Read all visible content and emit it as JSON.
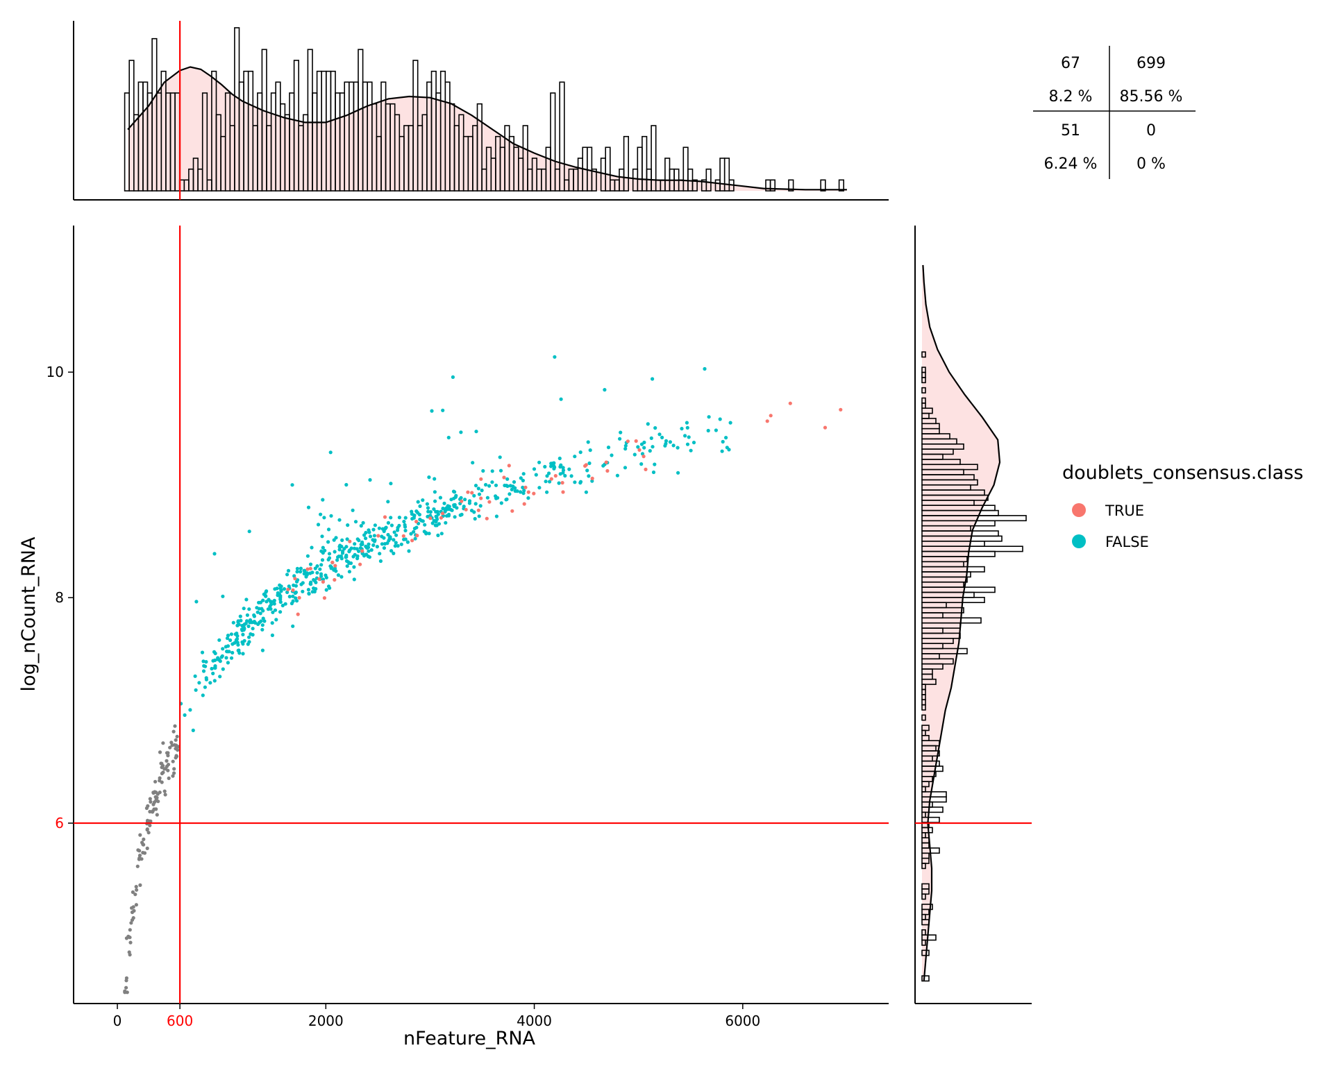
{
  "chart_data": {
    "type": "scatter",
    "x_label": "nFeature_RNA",
    "y_label": "log_nCount_RNA",
    "xlim": [
      -420,
      7400
    ],
    "ylim": [
      4.4,
      11.3
    ],
    "x_ticks": [
      0,
      600,
      2000,
      4000,
      6000
    ],
    "y_ticks": [
      6,
      8,
      10
    ],
    "threshold_x": 600,
    "threshold_y": 6,
    "threshold_color": "#ff0000",
    "grid": false,
    "legend": {
      "title": "doublets_consensus.class",
      "position": "right",
      "items": [
        {
          "label": "TRUE",
          "color": "#F8766D"
        },
        {
          "label": "FALSE",
          "color": "#00BFC4"
        }
      ]
    },
    "below_threshold_color": "#808080",
    "marginal_fill_color": "#fde2e2",
    "quadrant_table": {
      "top_left_count": "67",
      "top_left_pct": "8.2 %",
      "top_right_count": "699",
      "top_right_pct": "85.56 %",
      "bottom_left_count": "51",
      "bottom_left_pct": "6.24 %",
      "bottom_right_count": "0",
      "bottom_right_pct": "0 %"
    },
    "counts": {
      "grey_points": 118,
      "true_points": 60,
      "false_points": 639
    },
    "x_density": [
      [
        100,
        0.52
      ],
      [
        300,
        0.72
      ],
      [
        450,
        0.92
      ],
      [
        600,
        1.02
      ],
      [
        700,
        1.05
      ],
      [
        800,
        1.03
      ],
      [
        900,
        0.97
      ],
      [
        1000,
        0.9
      ],
      [
        1100,
        0.82
      ],
      [
        1200,
        0.76
      ],
      [
        1300,
        0.72
      ],
      [
        1400,
        0.68
      ],
      [
        1500,
        0.65
      ],
      [
        1600,
        0.62
      ],
      [
        1800,
        0.58
      ],
      [
        2000,
        0.58
      ],
      [
        2200,
        0.64
      ],
      [
        2400,
        0.72
      ],
      [
        2600,
        0.78
      ],
      [
        2800,
        0.8
      ],
      [
        3000,
        0.79
      ],
      [
        3200,
        0.74
      ],
      [
        3400,
        0.64
      ],
      [
        3600,
        0.52
      ],
      [
        3800,
        0.4
      ],
      [
        4000,
        0.32
      ],
      [
        4200,
        0.25
      ],
      [
        4400,
        0.2
      ],
      [
        4600,
        0.16
      ],
      [
        4800,
        0.12
      ],
      [
        5000,
        0.1
      ],
      [
        5200,
        0.09
      ],
      [
        5400,
        0.09
      ],
      [
        5600,
        0.08
      ],
      [
        5800,
        0.06
      ],
      [
        6000,
        0.04
      ],
      [
        6200,
        0.02
      ],
      [
        6600,
        0.01
      ],
      [
        7000,
        0.01
      ]
    ],
    "y_density": [
      [
        4.6,
        0.02
      ],
      [
        4.8,
        0.04
      ],
      [
        5.0,
        0.06
      ],
      [
        5.2,
        0.08
      ],
      [
        5.4,
        0.1
      ],
      [
        5.6,
        0.1
      ],
      [
        5.8,
        0.08
      ],
      [
        6.0,
        0.06
      ],
      [
        6.2,
        0.08
      ],
      [
        6.4,
        0.12
      ],
      [
        6.6,
        0.16
      ],
      [
        6.8,
        0.2
      ],
      [
        7.0,
        0.24
      ],
      [
        7.2,
        0.3
      ],
      [
        7.4,
        0.34
      ],
      [
        7.6,
        0.38
      ],
      [
        7.8,
        0.4
      ],
      [
        8.0,
        0.42
      ],
      [
        8.2,
        0.46
      ],
      [
        8.4,
        0.48
      ],
      [
        8.6,
        0.52
      ],
      [
        8.8,
        0.62
      ],
      [
        9.0,
        0.74
      ],
      [
        9.2,
        0.8
      ],
      [
        9.4,
        0.78
      ],
      [
        9.6,
        0.62
      ],
      [
        9.8,
        0.44
      ],
      [
        10.0,
        0.28
      ],
      [
        10.2,
        0.16
      ],
      [
        10.4,
        0.08
      ],
      [
        10.6,
        0.04
      ],
      [
        10.8,
        0.02
      ],
      [
        10.95,
        0.01
      ]
    ]
  }
}
